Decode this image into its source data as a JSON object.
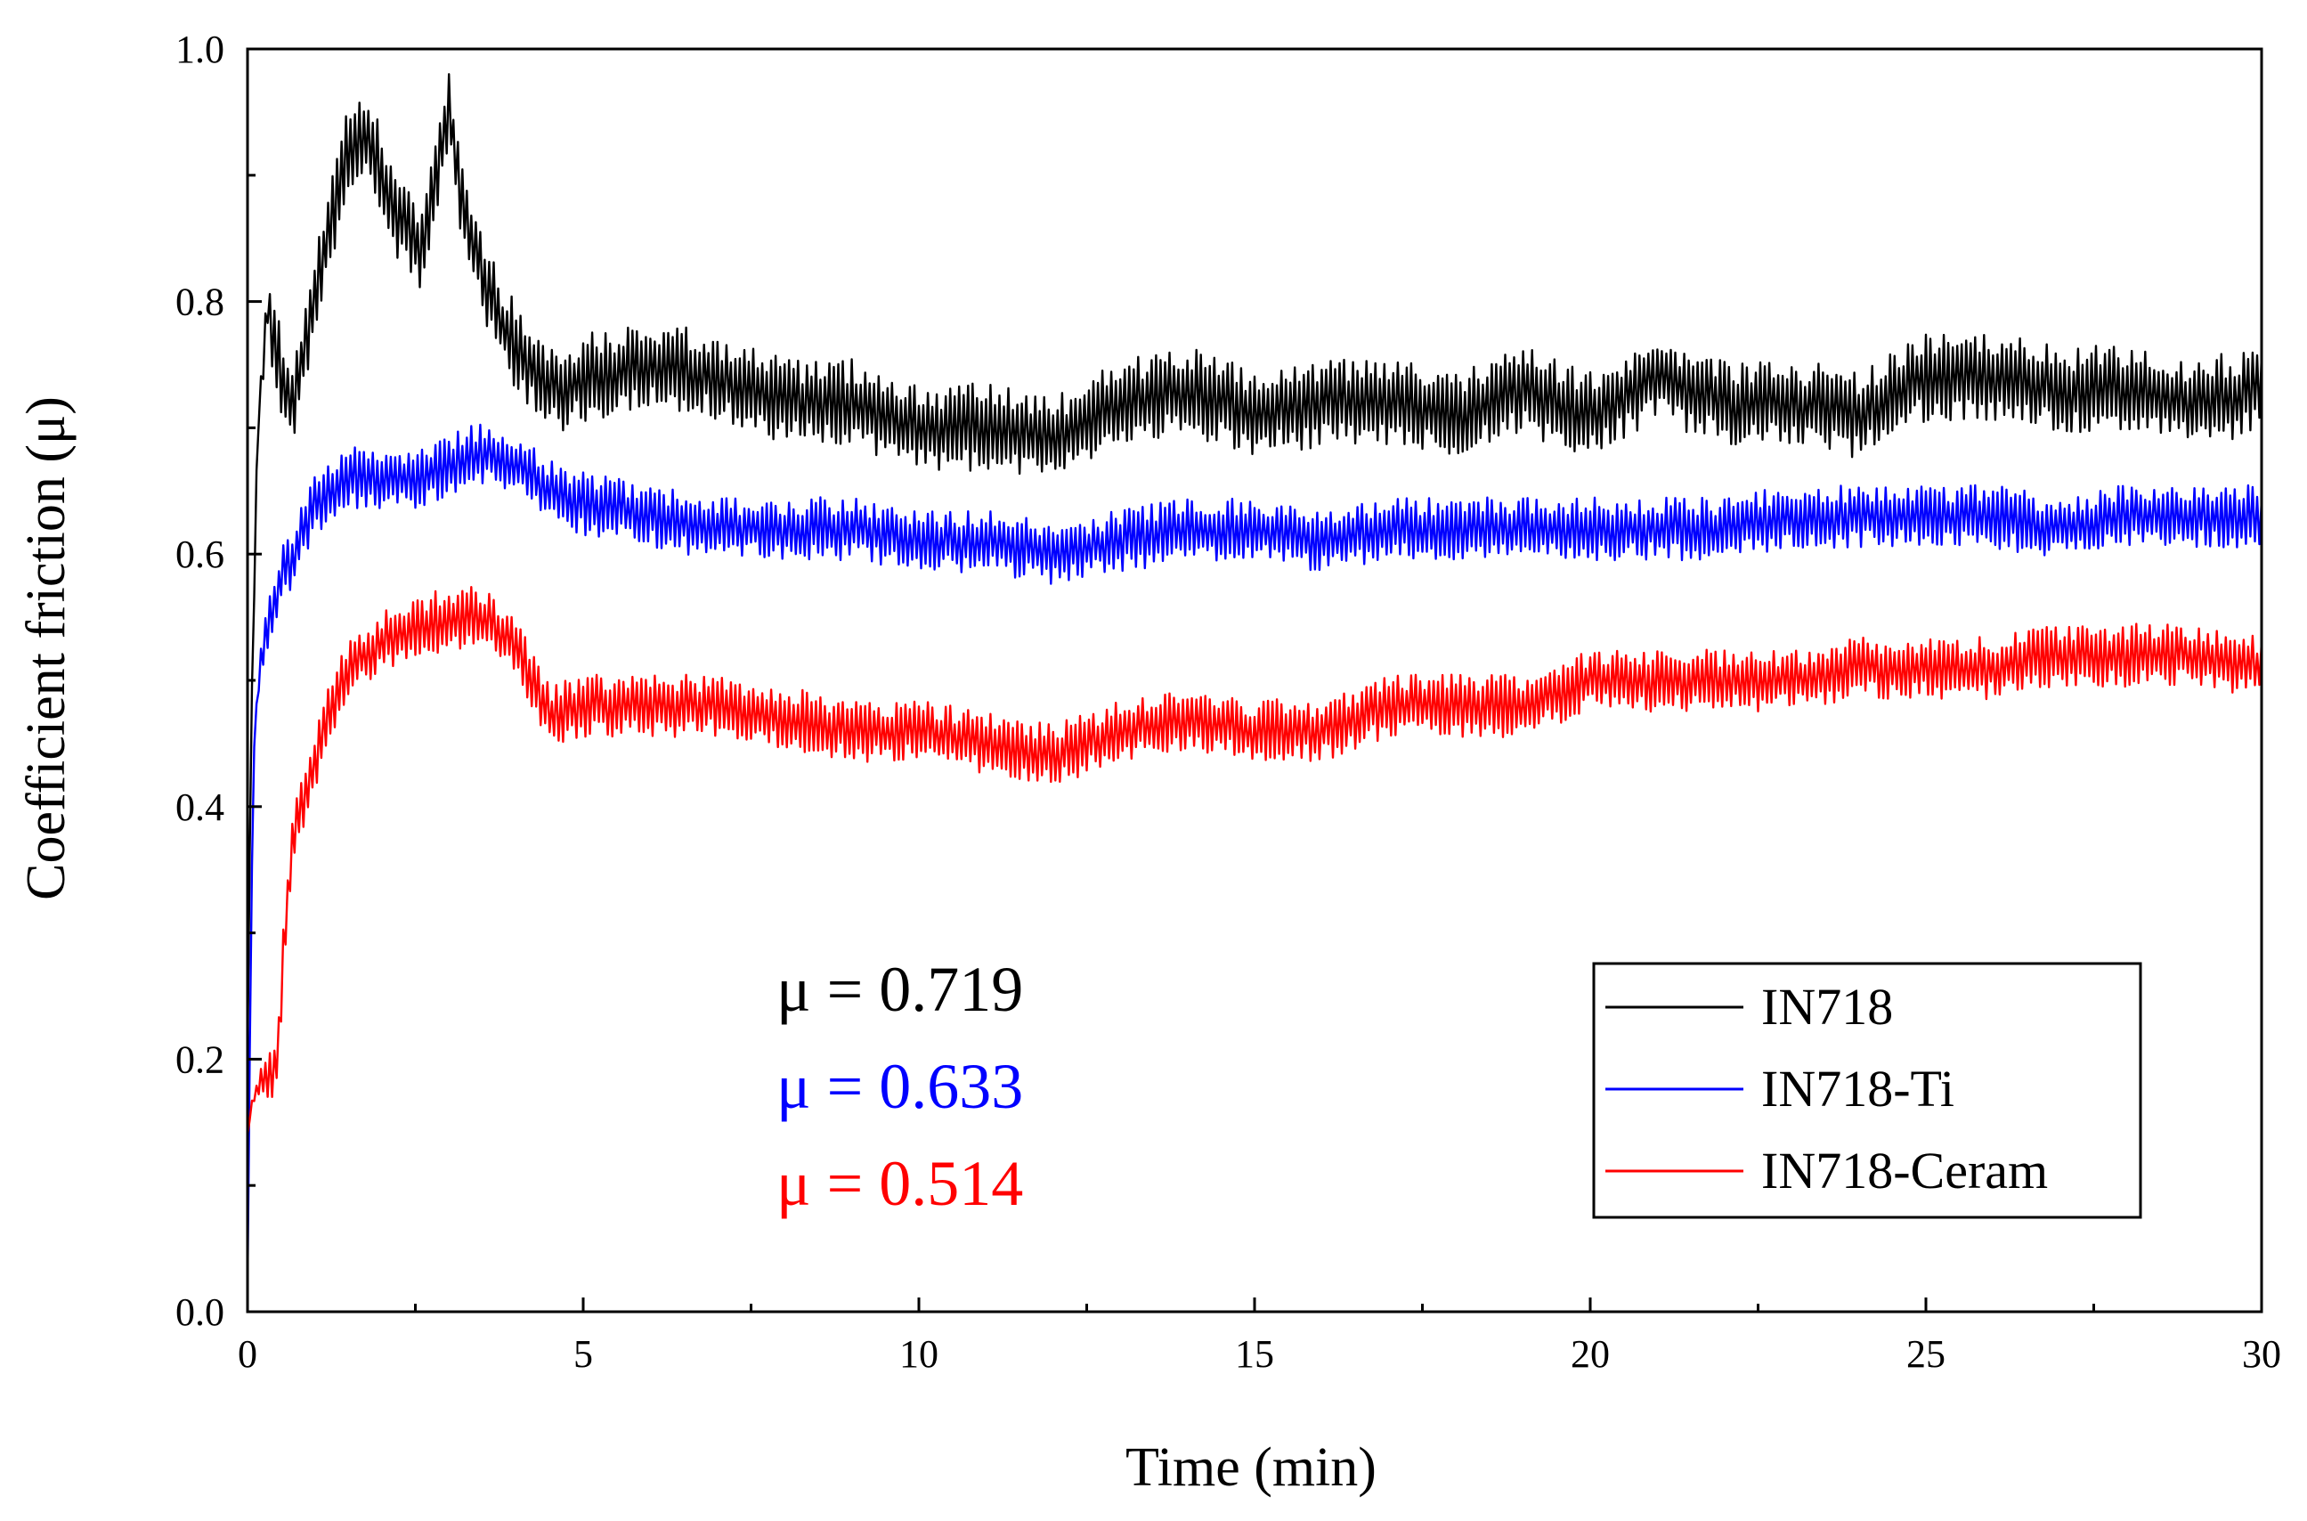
{
  "chart_data": {
    "type": "line",
    "title": "",
    "xlabel": "Time (min)",
    "ylabel": "Coefficient friction (μ)",
    "xlim": [
      0,
      30
    ],
    "ylim": [
      0.0,
      1.0
    ],
    "xticks": [
      0,
      5,
      10,
      15,
      20,
      25,
      30
    ],
    "xtick_labels": [
      "0",
      "5",
      "10",
      "15",
      "20",
      "25",
      "30"
    ],
    "yticks": [
      0.0,
      0.2,
      0.4,
      0.6,
      0.8,
      1.0
    ],
    "ytick_labels": [
      "0.0",
      "0.2",
      "0.4",
      "0.6",
      "0.8",
      "1.0"
    ],
    "grid": false,
    "legend_position": "bottom-right",
    "series": [
      {
        "name": "IN718",
        "color": "#000000",
        "noise": 0.035,
        "x": [
          0.0,
          0.05,
          0.15,
          0.3,
          0.5,
          0.7,
          0.9,
          1.2,
          1.5,
          1.8,
          2.0,
          2.3,
          2.6,
          2.8,
          3.0,
          3.2,
          3.5,
          3.8,
          4.2,
          4.6,
          5.0,
          6.0,
          7.0,
          8.0,
          9.0,
          10.0,
          11.0,
          12.0,
          13.0,
          14.0,
          15.0,
          16.0,
          17.0,
          18.0,
          19.0,
          20.0,
          21.0,
          22.0,
          23.0,
          24.0,
          25.0,
          26.0,
          27.0,
          28.0,
          29.0,
          30.0
        ],
        "y": [
          0.2,
          0.45,
          0.7,
          0.8,
          0.74,
          0.72,
          0.78,
          0.85,
          0.92,
          0.93,
          0.9,
          0.86,
          0.84,
          0.9,
          0.95,
          0.88,
          0.82,
          0.78,
          0.75,
          0.73,
          0.74,
          0.75,
          0.74,
          0.72,
          0.72,
          0.7,
          0.7,
          0.69,
          0.72,
          0.73,
          0.71,
          0.72,
          0.72,
          0.71,
          0.73,
          0.71,
          0.74,
          0.72,
          0.72,
          0.71,
          0.74,
          0.74,
          0.73,
          0.73,
          0.72,
          0.73
        ]
      },
      {
        "name": "IN718-Ti",
        "color": "#0000ff",
        "noise": 0.025,
        "x": [
          0.0,
          0.05,
          0.1,
          0.2,
          0.35,
          0.5,
          0.7,
          1.0,
          1.5,
          2.0,
          2.5,
          3.0,
          3.5,
          4.0,
          4.5,
          5.0,
          6.0,
          7.0,
          8.0,
          9.0,
          10.0,
          11.0,
          12.0,
          13.0,
          14.0,
          15.0,
          16.0,
          17.0,
          18.0,
          19.0,
          20.0,
          21.0,
          22.0,
          23.0,
          24.0,
          25.0,
          26.0,
          27.0,
          28.0,
          29.0,
          30.0
        ],
        "y": [
          0.02,
          0.3,
          0.45,
          0.52,
          0.55,
          0.58,
          0.6,
          0.64,
          0.66,
          0.66,
          0.66,
          0.67,
          0.68,
          0.67,
          0.65,
          0.64,
          0.63,
          0.62,
          0.62,
          0.62,
          0.61,
          0.61,
          0.6,
          0.61,
          0.62,
          0.62,
          0.61,
          0.62,
          0.62,
          0.62,
          0.62,
          0.62,
          0.62,
          0.63,
          0.63,
          0.63,
          0.63,
          0.62,
          0.63,
          0.63,
          0.63
        ]
      },
      {
        "name": "IN718-Ceram",
        "color": "#ff0000",
        "noise": 0.025,
        "x": [
          0.0,
          0.05,
          0.1,
          0.2,
          0.35,
          0.45,
          0.55,
          0.7,
          0.9,
          1.2,
          1.5,
          2.0,
          2.5,
          3.0,
          3.5,
          4.0,
          4.5,
          5.0,
          6.0,
          7.0,
          8.0,
          9.0,
          10.0,
          11.0,
          12.0,
          13.0,
          14.0,
          15.0,
          16.0,
          17.0,
          18.0,
          19.0,
          20.0,
          21.0,
          22.0,
          23.0,
          24.0,
          25.0,
          26.0,
          27.0,
          28.0,
          29.0,
          30.0
        ],
        "y": [
          0.14,
          0.16,
          0.17,
          0.18,
          0.19,
          0.2,
          0.3,
          0.38,
          0.42,
          0.47,
          0.51,
          0.53,
          0.54,
          0.55,
          0.55,
          0.53,
          0.47,
          0.48,
          0.48,
          0.48,
          0.47,
          0.46,
          0.46,
          0.45,
          0.44,
          0.46,
          0.47,
          0.46,
          0.46,
          0.48,
          0.48,
          0.48,
          0.5,
          0.5,
          0.5,
          0.5,
          0.51,
          0.51,
          0.51,
          0.52,
          0.52,
          0.52,
          0.51
        ]
      }
    ],
    "annotations": [
      {
        "text": "μ = 0.719",
        "color": "#000000"
      },
      {
        "text": "μ = 0.633",
        "color": "#0000ff"
      },
      {
        "text": "μ = 0.514",
        "color": "#ff0000"
      }
    ]
  }
}
